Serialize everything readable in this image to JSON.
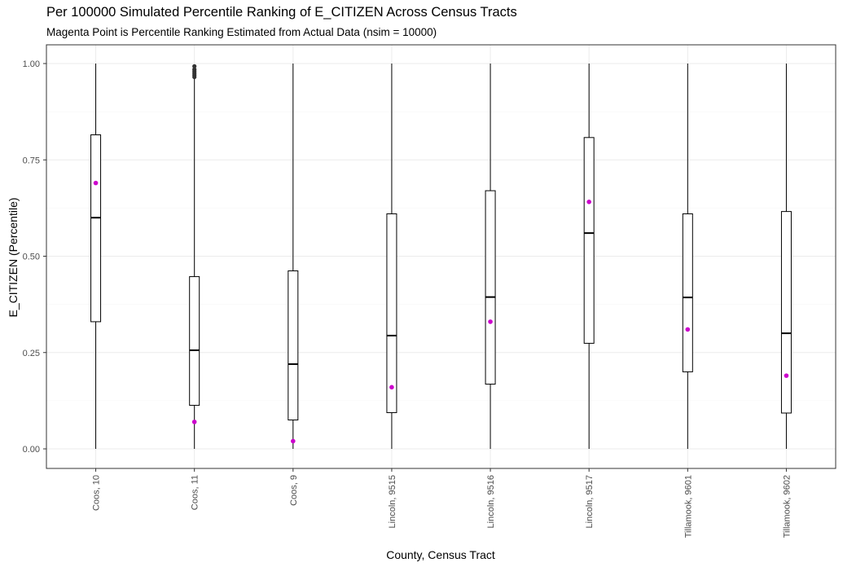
{
  "chart_data": {
    "type": "boxplot",
    "title": "Per 100000 Simulated Percentile Ranking of E_CITIZEN Across Census Tracts",
    "subtitle": "Magenta Point is Percentile Ranking Estimated from Actual Data (nsim = 10000)",
    "xlabel": "County, Census Tract",
    "ylabel": "E_CITIZEN (Percentile)",
    "ylim": [
      -0.05,
      1.05
    ],
    "yticks": [
      0.0,
      0.25,
      0.5,
      0.75,
      1.0
    ],
    "ytick_labels": [
      "0.00",
      "0.25",
      "0.50",
      "0.75",
      "1.00"
    ],
    "grid": true,
    "colors": {
      "box": "#000000",
      "point": "#cc00cc",
      "grid": "#ebebeb",
      "panel_border": "#333333"
    },
    "categories": [
      "Coos, 10",
      "Coos, 11",
      "Coos, 9",
      "Lincoln, 9515",
      "Lincoln, 9516",
      "Lincoln, 9517",
      "Tillamook, 9601",
      "Tillamook, 9602"
    ],
    "boxes": [
      {
        "category": "Coos, 10",
        "min": 0.0,
        "q1": 0.33,
        "median": 0.6,
        "q3": 0.815,
        "max": 1.0,
        "point": 0.69
      },
      {
        "category": "Coos, 11",
        "min": 0.0,
        "q1": 0.113,
        "median": 0.256,
        "q3": 0.447,
        "max": 0.96,
        "point": 0.07,
        "outliers": [
          0.965,
          0.97,
          0.975,
          0.98,
          0.985,
          0.993
        ]
      },
      {
        "category": "Coos, 9",
        "min": 0.0,
        "q1": 0.075,
        "median": 0.22,
        "q3": 0.462,
        "max": 1.0,
        "point": 0.02
      },
      {
        "category": "Lincoln, 9515",
        "min": 0.0,
        "q1": 0.094,
        "median": 0.294,
        "q3": 0.61,
        "max": 1.0,
        "point": 0.16
      },
      {
        "category": "Lincoln, 9516",
        "min": 0.0,
        "q1": 0.168,
        "median": 0.394,
        "q3": 0.67,
        "max": 1.0,
        "point": 0.33
      },
      {
        "category": "Lincoln, 9517",
        "min": 0.0,
        "q1": 0.274,
        "median": 0.56,
        "q3": 0.808,
        "max": 1.0,
        "point": 0.641
      },
      {
        "category": "Tillamook, 9601",
        "min": 0.0,
        "q1": 0.2,
        "median": 0.393,
        "q3": 0.61,
        "max": 1.0,
        "point": 0.31
      },
      {
        "category": "Tillamook, 9602",
        "min": 0.0,
        "q1": 0.093,
        "median": 0.3,
        "q3": 0.616,
        "max": 1.0,
        "point": 0.19
      }
    ]
  }
}
